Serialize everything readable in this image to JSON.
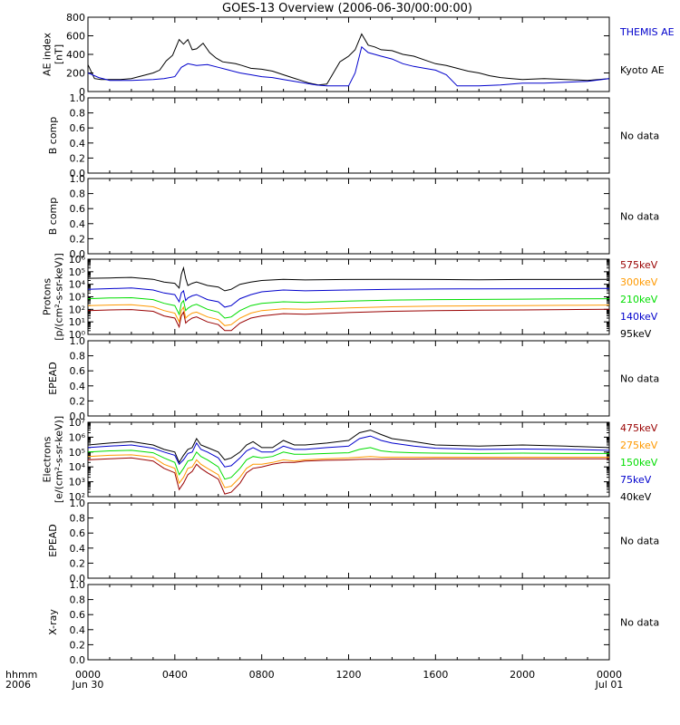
{
  "title": "GOES-13 Overview (2006-06-30/00:00:00)",
  "colors": {
    "black": "#000000",
    "blue": "#0000cc",
    "green": "#00dd00",
    "orange": "#ff9900",
    "darkred": "#990000"
  },
  "time_axis": {
    "row1_label": "hhmm",
    "row2_label": "2006",
    "ticks": [
      {
        "t": 0,
        "label": "0000",
        "sub": "Jun 30"
      },
      {
        "t": 4,
        "label": "0400",
        "sub": ""
      },
      {
        "t": 8,
        "label": "0800",
        "sub": ""
      },
      {
        "t": 12,
        "label": "1200",
        "sub": ""
      },
      {
        "t": 16,
        "label": "1600",
        "sub": ""
      },
      {
        "t": 20,
        "label": "2000",
        "sub": ""
      },
      {
        "t": 24,
        "label": "0000",
        "sub": "Jul 01"
      }
    ]
  },
  "chart_data": [
    {
      "type": "line",
      "panel": "ae",
      "ylabel": [
        "AE index",
        "[nT]"
      ],
      "ylim": [
        0,
        800
      ],
      "yticks": [
        "0",
        "200",
        "400",
        "600",
        "800"
      ],
      "xlim_hours": [
        0,
        24
      ],
      "series": [
        {
          "name": "Kyoto AE",
          "color": "#000000",
          "x": [
            0,
            0.3,
            0.6,
            1,
            1.5,
            2,
            2.5,
            3,
            3.3,
            3.6,
            3.9,
            4.2,
            4.4,
            4.6,
            4.8,
            5,
            5.3,
            5.6,
            5.9,
            6.2,
            6.5,
            6.8,
            7.1,
            7.5,
            8,
            8.5,
            9,
            9.4,
            9.8,
            10.2,
            10.6,
            11,
            11.3,
            11.6,
            12,
            12.3,
            12.6,
            12.9,
            13.2,
            13.5,
            14,
            14.5,
            15,
            15.5,
            16,
            16.5,
            17,
            17.5,
            18,
            18.5,
            19,
            19.5,
            20,
            21,
            22,
            23,
            24
          ],
          "y": [
            290,
            140,
            130,
            130,
            130,
            140,
            170,
            200,
            230,
            330,
            390,
            560,
            510,
            560,
            450,
            460,
            520,
            420,
            360,
            320,
            310,
            300,
            280,
            250,
            240,
            220,
            180,
            150,
            120,
            90,
            70,
            80,
            200,
            320,
            380,
            450,
            620,
            500,
            480,
            450,
            440,
            400,
            380,
            340,
            300,
            280,
            250,
            220,
            200,
            170,
            150,
            140,
            130,
            140,
            130,
            120,
            140
          ]
        },
        {
          "name": "THEMIS AE",
          "color": "#0000cc",
          "x": [
            0,
            0.5,
            1,
            2,
            3,
            3.5,
            4,
            4.3,
            4.6,
            5,
            5.5,
            6,
            6.5,
            7,
            7.5,
            8,
            8.5,
            9,
            9.5,
            10,
            10.5,
            11,
            11.5,
            12,
            12.3,
            12.6,
            12.9,
            13.2,
            13.5,
            14,
            14.5,
            15,
            15.5,
            16,
            16.5,
            17,
            17.5,
            18,
            19,
            20,
            21,
            22,
            23,
            24
          ],
          "y": [
            200,
            150,
            120,
            120,
            130,
            140,
            160,
            260,
            300,
            280,
            290,
            260,
            230,
            200,
            180,
            160,
            150,
            130,
            110,
            90,
            70,
            60,
            60,
            60,
            200,
            480,
            420,
            400,
            380,
            350,
            300,
            270,
            250,
            230,
            180,
            60,
            60,
            60,
            70,
            90,
            90,
            100,
            110,
            140
          ]
        }
      ]
    },
    {
      "type": "line",
      "panel": "bcomp1",
      "ylabel": [
        "B comp"
      ],
      "ylim": [
        0,
        1
      ],
      "yticks": [
        "0.0",
        "0.2",
        "0.4",
        "0.6",
        "0.8",
        "1.0"
      ],
      "status": "No data",
      "series": []
    },
    {
      "type": "line",
      "panel": "bcomp2",
      "ylabel": [
        "B comp"
      ],
      "ylim": [
        0,
        1
      ],
      "yticks": [
        "0.0",
        "0.2",
        "0.4",
        "0.6",
        "0.8",
        "1.0"
      ],
      "status": "No data",
      "series": []
    },
    {
      "type": "line",
      "panel": "protons",
      "scale": "log",
      "ylabel": [
        "Protons",
        "[p/(cm²-s-sr-keV)]"
      ],
      "ylim": [
        1,
        1000000
      ],
      "yticks": [
        "10⁰",
        "10¹",
        "10²",
        "10³",
        "10⁴",
        "10⁵",
        "10⁶"
      ],
      "series": [
        {
          "name": "95keV",
          "color": "#000000",
          "x": [
            0,
            1,
            2,
            3,
            3.5,
            4,
            4.2,
            4.3,
            4.4,
            4.5,
            4.6,
            4.8,
            5,
            5.5,
            6,
            6.3,
            6.6,
            7,
            7.5,
            8,
            9,
            10,
            12,
            14,
            16,
            18,
            20,
            22,
            24
          ],
          "y": [
            30000,
            32000,
            35000,
            25000,
            15000,
            12000,
            5000,
            60000,
            200000,
            30000,
            8000,
            12000,
            15000,
            8000,
            6000,
            3000,
            4000,
            10000,
            15000,
            20000,
            25000,
            22000,
            24000,
            25000,
            24000,
            23000,
            24000,
            24000,
            25000
          ]
        },
        {
          "name": "140keV",
          "color": "#0000cc",
          "x": [
            0,
            1,
            2,
            3,
            3.5,
            4,
            4.2,
            4.3,
            4.4,
            4.5,
            4.6,
            4.8,
            5,
            5.5,
            6,
            6.3,
            6.6,
            7,
            7.5,
            8,
            9,
            10,
            12,
            14,
            16,
            18,
            20,
            22,
            24
          ],
          "y": [
            4000,
            4500,
            5000,
            3500,
            2000,
            1500,
            400,
            2000,
            3000,
            500,
            800,
            1200,
            1500,
            600,
            400,
            150,
            200,
            700,
            1500,
            2500,
            3500,
            3000,
            3500,
            4000,
            4200,
            4300,
            4400,
            4500,
            4600
          ]
        },
        {
          "name": "210keV",
          "color": "#00dd00",
          "x": [
            0,
            1,
            2,
            3,
            3.5,
            4,
            4.2,
            4.3,
            4.4,
            4.5,
            4.6,
            4.8,
            5,
            5.5,
            6,
            6.3,
            6.6,
            7,
            7.5,
            8,
            9,
            10,
            12,
            14,
            16,
            18,
            20,
            22,
            24
          ],
          "y": [
            700,
            800,
            850,
            600,
            300,
            200,
            40,
            300,
            500,
            80,
            120,
            200,
            250,
            100,
            60,
            20,
            25,
            80,
            200,
            300,
            400,
            350,
            450,
            550,
            600,
            620,
            650,
            680,
            700
          ]
        },
        {
          "name": "300keV",
          "color": "#ff9900",
          "x": [
            0,
            1,
            2,
            3,
            3.5,
            4,
            4.2,
            4.3,
            4.4,
            4.5,
            4.6,
            4.8,
            5,
            5.5,
            6,
            6.3,
            6.6,
            7,
            7.5,
            8,
            9,
            10,
            12,
            14,
            16,
            18,
            20,
            22,
            24
          ],
          "y": [
            200,
            220,
            230,
            160,
            80,
            50,
            10,
            80,
            150,
            20,
            30,
            50,
            60,
            25,
            15,
            5,
            6,
            20,
            50,
            80,
            110,
            100,
            130,
            160,
            180,
            190,
            200,
            210,
            220
          ]
        },
        {
          "name": "575keV",
          "color": "#990000",
          "x": [
            0,
            1,
            2,
            3,
            3.5,
            4,
            4.2,
            4.3,
            4.4,
            4.5,
            4.6,
            4.8,
            5,
            5.5,
            6,
            6.3,
            6.6,
            7,
            7.5,
            8,
            9,
            10,
            12,
            14,
            16,
            18,
            20,
            22,
            24
          ],
          "y": [
            80,
            90,
            95,
            70,
            30,
            20,
            4,
            30,
            60,
            8,
            12,
            20,
            25,
            10,
            6,
            2,
            2,
            8,
            20,
            30,
            45,
            40,
            55,
            70,
            80,
            85,
            90,
            95,
            100
          ]
        }
      ]
    },
    {
      "type": "line",
      "panel": "epead1",
      "ylabel": [
        "EPEAD"
      ],
      "ylim": [
        0,
        1
      ],
      "yticks": [
        "0.0",
        "0.2",
        "0.4",
        "0.6",
        "0.8",
        "1.0"
      ],
      "status": "No data",
      "series": []
    },
    {
      "type": "line",
      "panel": "electrons",
      "scale": "log",
      "ylabel": [
        "Electrons",
        "[e/(cm²-s-sr-keV)]"
      ],
      "ylim": [
        100,
        10000000
      ],
      "yticks": [
        "10²",
        "10³",
        "10⁴",
        "10⁵",
        "10⁶",
        "10⁷"
      ],
      "series": [
        {
          "name": "40keV",
          "color": "#000000",
          "x": [
            0,
            1,
            2,
            3,
            3.5,
            4,
            4.2,
            4.4,
            4.6,
            4.8,
            5,
            5.2,
            5.5,
            6,
            6.3,
            6.6,
            7,
            7.3,
            7.6,
            8,
            8.5,
            9,
            9.5,
            10,
            11,
            12,
            12.5,
            13,
            13.5,
            14,
            15,
            16,
            18,
            20,
            22,
            24
          ],
          "y": [
            300000,
            400000,
            500000,
            300000,
            150000,
            100000,
            20000,
            60000,
            150000,
            200000,
            800000,
            300000,
            200000,
            100000,
            30000,
            40000,
            100000,
            300000,
            500000,
            200000,
            200000,
            600000,
            300000,
            300000,
            400000,
            600000,
            2000000,
            3000000,
            1500000,
            800000,
            500000,
            300000,
            250000,
            300000,
            250000,
            200000
          ]
        },
        {
          "name": "75keV",
          "color": "#0000cc",
          "x": [
            0,
            1,
            2,
            3,
            3.5,
            4,
            4.2,
            4.4,
            4.6,
            4.8,
            5,
            5.2,
            5.5,
            6,
            6.3,
            6.6,
            7,
            7.3,
            7.6,
            8,
            8.5,
            9,
            9.5,
            10,
            11,
            12,
            12.5,
            13,
            13.5,
            14,
            15,
            16,
            18,
            20,
            22,
            24
          ],
          "y": [
            200000,
            250000,
            300000,
            180000,
            100000,
            60000,
            15000,
            30000,
            80000,
            100000,
            400000,
            150000,
            100000,
            40000,
            10000,
            12000,
            40000,
            120000,
            200000,
            100000,
            100000,
            250000,
            150000,
            150000,
            200000,
            250000,
            800000,
            1200000,
            600000,
            400000,
            250000,
            180000,
            150000,
            160000,
            150000,
            130000
          ]
        },
        {
          "name": "150keV",
          "color": "#00dd00",
          "x": [
            0,
            1,
            2,
            3,
            3.5,
            4,
            4.2,
            4.4,
            4.6,
            4.8,
            5,
            5.2,
            5.5,
            6,
            6.3,
            6.6,
            7,
            7.3,
            7.6,
            8,
            8.5,
            9,
            9.5,
            10,
            11,
            12,
            12.5,
            13,
            13.5,
            14,
            15,
            16,
            18,
            20,
            22,
            24
          ],
          "y": [
            100000,
            120000,
            130000,
            90000,
            40000,
            20000,
            3000,
            8000,
            25000,
            30000,
            100000,
            50000,
            30000,
            10000,
            1500,
            2000,
            8000,
            30000,
            50000,
            40000,
            50000,
            100000,
            70000,
            70000,
            80000,
            90000,
            150000,
            200000,
            120000,
            100000,
            90000,
            85000,
            80000,
            85000,
            80000,
            80000
          ]
        },
        {
          "name": "275keV",
          "color": "#ff9900",
          "x": [
            0,
            1,
            2,
            3,
            3.5,
            4,
            4.2,
            4.4,
            4.6,
            4.8,
            5,
            5.2,
            5.5,
            6,
            6.3,
            6.6,
            7,
            7.3,
            7.6,
            8,
            8.5,
            9,
            9.5,
            10,
            11,
            12,
            12.5,
            13,
            13.5,
            14,
            15,
            16,
            18,
            20,
            22,
            24
          ],
          "y": [
            50000,
            60000,
            65000,
            45000,
            15000,
            8000,
            800,
            2000,
            8000,
            10000,
            30000,
            15000,
            8000,
            3000,
            400,
            500,
            2000,
            8000,
            15000,
            15000,
            20000,
            30000,
            25000,
            30000,
            35000,
            40000,
            45000,
            50000,
            45000,
            45000,
            45000,
            45000,
            45000,
            45000,
            45000,
            45000
          ]
        },
        {
          "name": "475keV",
          "color": "#990000",
          "x": [
            0,
            1,
            2,
            3,
            3.5,
            4,
            4.2,
            4.4,
            4.6,
            4.8,
            5,
            5.2,
            5.5,
            6,
            6.3,
            6.6,
            7,
            7.3,
            7.6,
            8,
            8.5,
            9,
            9.5,
            10,
            11,
            12,
            12.5,
            13,
            13.5,
            14,
            15,
            16,
            18,
            20,
            22,
            24
          ],
          "y": [
            30000,
            35000,
            40000,
            25000,
            8000,
            4000,
            300,
            800,
            3000,
            5000,
            15000,
            8000,
            4000,
            1500,
            150,
            200,
            800,
            4000,
            8000,
            10000,
            15000,
            20000,
            20000,
            25000,
            28000,
            30000,
            32000,
            33000,
            33000,
            34000,
            34000,
            35000,
            35000,
            35000,
            35000,
            35000
          ]
        }
      ]
    },
    {
      "type": "line",
      "panel": "epead2",
      "ylabel": [
        "EPEAD"
      ],
      "ylim": [
        0,
        1
      ],
      "yticks": [
        "0.0",
        "0.2",
        "0.4",
        "0.6",
        "0.8",
        "1.0"
      ],
      "status": "No data",
      "series": []
    },
    {
      "type": "line",
      "panel": "xray",
      "ylabel": [
        "X-ray"
      ],
      "ylim": [
        0,
        1
      ],
      "yticks": [
        "0.0",
        "0.2",
        "0.4",
        "0.6",
        "0.8",
        "1.0"
      ],
      "status": "No data",
      "series": []
    }
  ]
}
